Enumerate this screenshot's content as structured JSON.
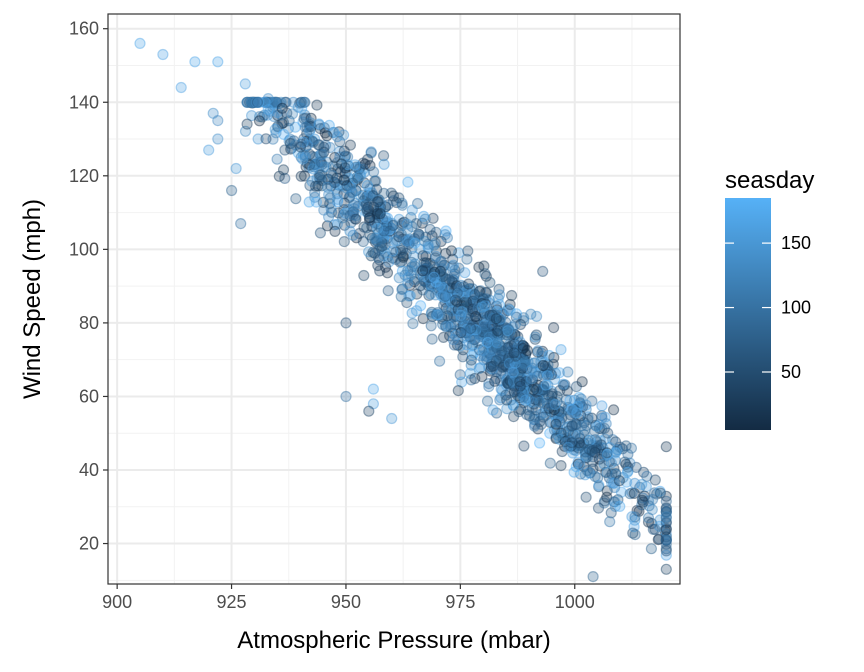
{
  "chart_data": {
    "type": "scatter",
    "xlabel": "Atmospheric Pressure (mbar)",
    "ylabel": "Wind Speed (mph)",
    "xlim": [
      898,
      1023
    ],
    "ylim": [
      9,
      164
    ],
    "x_ticks": [
      900,
      925,
      950,
      975,
      1000
    ],
    "y_ticks": [
      20,
      40,
      60,
      80,
      100,
      120,
      140,
      160
    ],
    "grid": true,
    "theme": "bw",
    "point_alpha": 0.3,
    "color_legend": {
      "title": "seasday",
      "range": [
        5,
        185
      ],
      "ticks": [
        50,
        100,
        150
      ],
      "low_color": "#132B43",
      "high_color": "#56B1F7",
      "placement": "right"
    },
    "n_points": 1500,
    "trend": {
      "slope": -1.29,
      "intercept": 1342,
      "noise_sd": 7
    },
    "notable_points": [
      {
        "x": 905,
        "y": 156,
        "seasday": 170
      },
      {
        "x": 910,
        "y": 153,
        "seasday": 165
      },
      {
        "x": 917,
        "y": 151,
        "seasday": 170
      },
      {
        "x": 922,
        "y": 151,
        "seasday": 170
      },
      {
        "x": 914,
        "y": 144,
        "seasday": 165
      },
      {
        "x": 928,
        "y": 145,
        "seasday": 160
      },
      {
        "x": 933,
        "y": 141,
        "seasday": 140
      },
      {
        "x": 933,
        "y": 138,
        "seasday": 170
      },
      {
        "x": 921,
        "y": 137,
        "seasday": 140
      },
      {
        "x": 922,
        "y": 135,
        "seasday": 130
      },
      {
        "x": 922,
        "y": 130,
        "seasday": 140
      },
      {
        "x": 920,
        "y": 127,
        "seasday": 160
      },
      {
        "x": 926,
        "y": 122,
        "seasday": 150
      },
      {
        "x": 925,
        "y": 116,
        "seasday": 80
      },
      {
        "x": 927,
        "y": 107,
        "seasday": 100
      },
      {
        "x": 952,
        "y": 123,
        "seasday": 170
      },
      {
        "x": 967,
        "y": 109,
        "seasday": 170
      },
      {
        "x": 950,
        "y": 80,
        "seasday": 60
      },
      {
        "x": 950,
        "y": 60,
        "seasday": 100
      },
      {
        "x": 956,
        "y": 62,
        "seasday": 170
      },
      {
        "x": 956,
        "y": 58,
        "seasday": 160
      },
      {
        "x": 955,
        "y": 56,
        "seasday": 40
      },
      {
        "x": 960,
        "y": 54,
        "seasday": 150
      },
      {
        "x": 1004,
        "y": 11,
        "seasday": 80
      },
      {
        "x": 1020,
        "y": 21,
        "seasday": 80
      },
      {
        "x": 1020,
        "y": 18,
        "seasday": 60
      },
      {
        "x": 993,
        "y": 94,
        "seasday": 60
      }
    ]
  }
}
